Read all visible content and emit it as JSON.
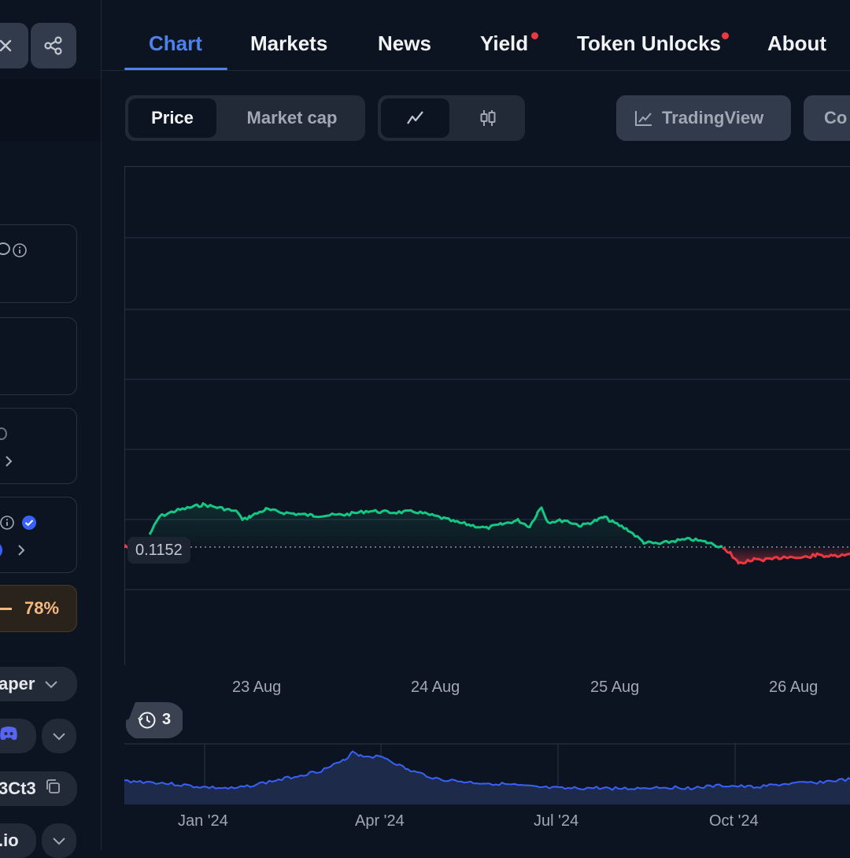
{
  "tabs": [
    {
      "label": "Chart",
      "active": true,
      "dot": false
    },
    {
      "label": "Markets",
      "active": false,
      "dot": false
    },
    {
      "label": "News",
      "active": false,
      "dot": false
    },
    {
      "label": "Yield",
      "active": false,
      "dot": true
    },
    {
      "label": "Token Unlocks",
      "active": false,
      "dot": true
    },
    {
      "label": "About",
      "active": false,
      "dot": false
    }
  ],
  "controls": {
    "price_label": "Price",
    "marketcap_label": "Market cap",
    "line_icon": "line-chart-icon",
    "candle_icon": "candlestick-icon",
    "tradingview_label": "TradingView",
    "compare_label": "Co"
  },
  "sidebar": {
    "percent": "78%",
    "dropdown_label": "aper",
    "contract_label": "3Ct3",
    "website_label": ".io",
    "share_icon": "share-icon",
    "close_icon": "close-icon"
  },
  "chart": {
    "current_price": "0.1152",
    "history_count": "3",
    "x_ticks": [
      "23 Aug",
      "24 Aug",
      "25 Aug",
      "26 Aug"
    ],
    "minimap_ticks": [
      "Jan '24",
      "Apr '24",
      "Jul '24",
      "Oct '24"
    ],
    "colors": {
      "up": "#16c784",
      "down": "#ea3943",
      "minimap": "#3861fb",
      "accent": "#4d82ec"
    }
  },
  "chart_data": {
    "type": "line",
    "x_ticks": [
      "23 Aug",
      "24 Aug",
      "25 Aug",
      "26 Aug"
    ],
    "reference_price": 0.1152,
    "grid": true
  }
}
